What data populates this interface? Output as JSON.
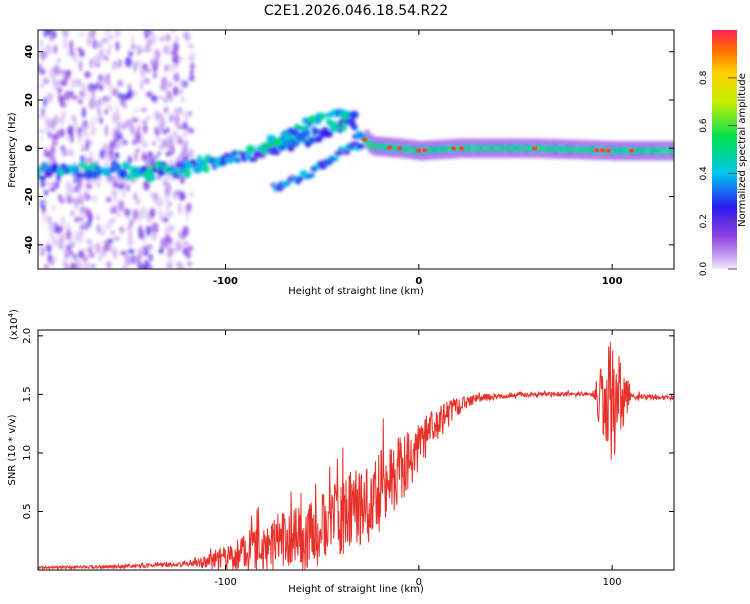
{
  "title": "C2E1.2026.046.18.54.R22",
  "chart_data": [
    {
      "type": "heatmap",
      "name": "spectrogram",
      "xlabel": "Height of straight line (km)",
      "ylabel": "Frequency (Hz)",
      "xlim": [
        -197,
        132
      ],
      "ylim": [
        -50,
        49
      ],
      "xticks": [
        -100,
        0,
        100
      ],
      "yticks": [
        -40,
        -20,
        0,
        20,
        40
      ],
      "colorbar": {
        "label": "Normalized spectral amplitude",
        "range": [
          0,
          1
        ],
        "ticks": [
          0.0,
          0.2,
          0.4,
          0.6,
          0.8
        ]
      },
      "ridges": [
        {
          "name": "main-ridge",
          "points": [
            [
              -197,
              -10
            ],
            [
              -170,
              -9
            ],
            [
              -140,
              -10
            ],
            [
              -120,
              -8
            ],
            [
              -100,
              -5
            ],
            [
              -80,
              -1
            ],
            [
              -60,
              4
            ],
            [
              -45,
              8
            ],
            [
              -35,
              10
            ],
            [
              -25,
              1
            ],
            [
              -10,
              0
            ],
            [
              0,
              -1
            ],
            [
              20,
              0
            ],
            [
              60,
              0
            ],
            [
              100,
              -1
            ],
            [
              132,
              -1
            ]
          ]
        },
        {
          "name": "upper-branch",
          "points": [
            [
              -80,
              1
            ],
            [
              -65,
              8
            ],
            [
              -50,
              12
            ],
            [
              -40,
              14
            ],
            [
              -32,
              15
            ]
          ]
        },
        {
          "name": "lower-branch",
          "points": [
            [
              -75,
              -16
            ],
            [
              -60,
              -12
            ],
            [
              -50,
              -7
            ],
            [
              -40,
              -2
            ],
            [
              -30,
              2
            ]
          ]
        }
      ]
    },
    {
      "type": "line",
      "name": "snr",
      "xlabel": "Height of straight line (km)",
      "ylabel": "SNR (10 * v/v)",
      "yscale_label": "(x10",
      "yscale_exp": "4",
      "xlim": [
        -197,
        132
      ],
      "ylim": [
        0.0,
        2.05
      ],
      "xticks": [
        -100,
        0,
        100
      ],
      "yticks": [
        0.5,
        1.0,
        1.5,
        2.0
      ],
      "series": [
        {
          "name": "SNR",
          "color": "#e8302a",
          "trend": [
            [
              -197,
              0.02
            ],
            [
              -150,
              0.03
            ],
            [
              -120,
              0.05
            ],
            [
              -105,
              0.08
            ],
            [
              -90,
              0.15
            ],
            [
              -70,
              0.25
            ],
            [
              -55,
              0.3
            ],
            [
              -45,
              0.4
            ],
            [
              -35,
              0.5
            ],
            [
              -20,
              0.65
            ],
            [
              -10,
              0.85
            ],
            [
              0,
              1.05
            ],
            [
              10,
              1.25
            ],
            [
              20,
              1.4
            ],
            [
              30,
              1.47
            ],
            [
              60,
              1.5
            ],
            [
              95,
              1.5
            ],
            [
              100,
              1.45
            ],
            [
              110,
              1.48
            ],
            [
              132,
              1.47
            ]
          ],
          "amplitude": [
            [
              -197,
              0.01
            ],
            [
              -120,
              0.02
            ],
            [
              -105,
              0.08
            ],
            [
              -95,
              0.15
            ],
            [
              -80,
              0.22
            ],
            [
              -60,
              0.28
            ],
            [
              -45,
              0.32
            ],
            [
              -35,
              0.35
            ],
            [
              -25,
              0.4
            ],
            [
              -10,
              0.3
            ],
            [
              10,
              0.15
            ],
            [
              25,
              0.05
            ],
            [
              40,
              0.02
            ],
            [
              90,
              0.02
            ],
            [
              95,
              0.35
            ],
            [
              100,
              0.5
            ],
            [
              105,
              0.3
            ],
            [
              110,
              0.03
            ],
            [
              132,
              0.02
            ]
          ]
        }
      ]
    }
  ]
}
